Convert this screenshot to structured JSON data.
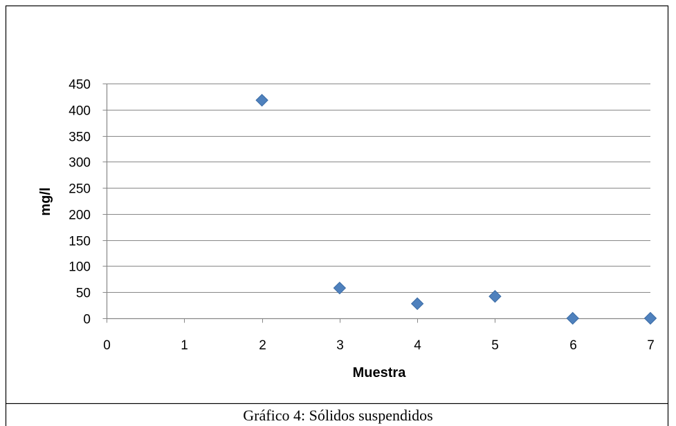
{
  "caption": "Gráfico 4: Sólidos suspendidos",
  "chart_data": {
    "type": "scatter",
    "title": "",
    "xlabel": "Muestra",
    "ylabel": "mg/l",
    "xlim": [
      0,
      7
    ],
    "ylim": [
      0,
      450
    ],
    "x_ticks": [
      0,
      1,
      2,
      3,
      4,
      5,
      6,
      7
    ],
    "y_ticks": [
      0,
      50,
      100,
      150,
      200,
      250,
      300,
      350,
      400,
      450
    ],
    "grid": "horizontal",
    "marker": "diamond",
    "series": [
      {
        "x": [
          2,
          3,
          4,
          5,
          6,
          7
        ],
        "y": [
          418,
          58,
          28,
          42,
          0,
          0
        ]
      }
    ],
    "colors": {
      "marker": "#4F81BD",
      "marker_edge": "#3A6BA5",
      "grid": "#878787",
      "axis": "#878787",
      "frame": "#000000"
    }
  }
}
